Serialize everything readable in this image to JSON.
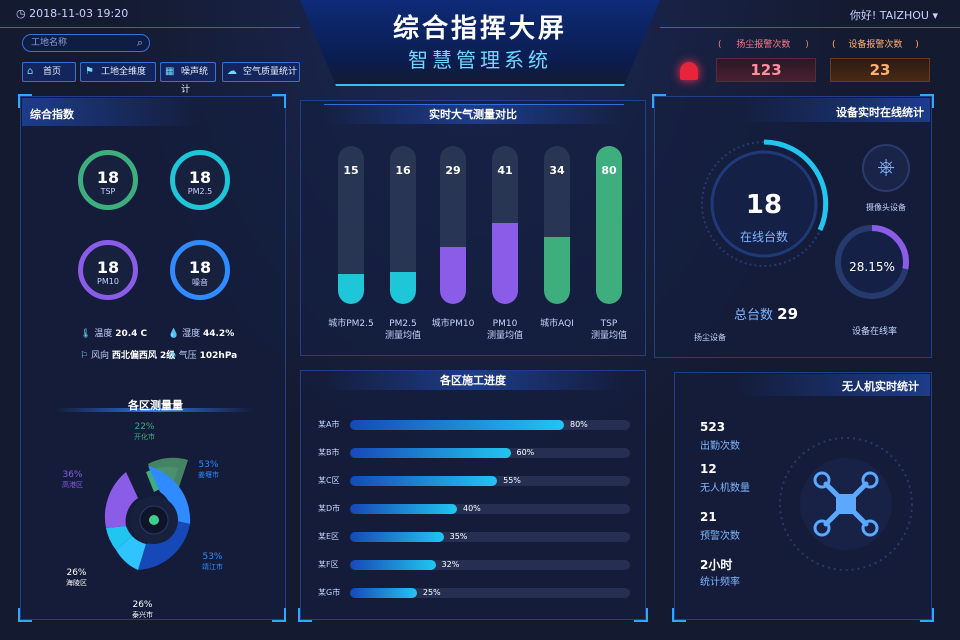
{
  "header": {
    "datetime": "2018-11-03   19:20",
    "title": "综合指挥大屏",
    "subtitle": "智慧管理系统",
    "greeting": "你好! TAIZHOU"
  },
  "search": {
    "placeholder": "工地名称"
  },
  "nav": [
    {
      "label": "首页",
      "icon": "home-icon"
    },
    {
      "label": "工地全维度",
      "icon": "site-icon"
    },
    {
      "label": "噪声统计",
      "icon": "building-icon"
    },
    {
      "label": "空气质量统计",
      "icon": "air-icon"
    }
  ],
  "alarms": {
    "dust_label": "扬尘报警次数",
    "dust_value": "123",
    "device_label": "设备报警次数",
    "device_value": "23",
    "paren_open": "(",
    "paren_close": ")"
  },
  "index_panel": {
    "title": "综合指数",
    "gauges": [
      {
        "value": "18",
        "label": "TSP",
        "color": "#3fae7e"
      },
      {
        "value": "18",
        "label": "PM2.5",
        "color": "#1fc6d8"
      },
      {
        "value": "18",
        "label": "PM10",
        "color": "#8a5ce8"
      },
      {
        "value": "18",
        "label": "噪音",
        "color": "#2f8bff"
      }
    ],
    "weather": {
      "temp_label": "温度",
      "temp_value": "20.4 C",
      "humidity_label": "湿度",
      "humidity_value": "44.2%",
      "wind_label": "风向",
      "wind_value": "西北偏西风 2级",
      "pressure_label": "气压",
      "pressure_value": "102hPa"
    }
  },
  "districts_panel": {
    "title": "各区测量量",
    "slices": [
      {
        "pct": "22%",
        "name": "开化市",
        "color": "#3fae7e"
      },
      {
        "pct": "53%",
        "name": "姜堰市",
        "color": "#2f8bff"
      },
      {
        "pct": "53%",
        "name": "靖江市",
        "color": "#1748b8"
      },
      {
        "pct": "26%",
        "name": "泰兴市",
        "color": "#2fc3ff"
      },
      {
        "pct": "26%",
        "name": "海陵区",
        "color": "#21c6f0"
      },
      {
        "pct": "36%",
        "name": "高港区",
        "color": "#8a5ce8"
      }
    ]
  },
  "air_panel": {
    "title": "实时大气测量对比"
  },
  "chart_data": {
    "type": "bar",
    "categories": [
      "城市PM2.5",
      "PM2.5\n测量均值",
      "城市PM10",
      "PM10\n测量均值",
      "城市AQI",
      "TSP\n测量均值"
    ],
    "values": [
      15,
      16,
      29,
      41,
      34,
      80
    ],
    "colors": [
      "#1fc6d8",
      "#1fc6d8",
      "#8a5ce8",
      "#8a5ce8",
      "#3fae7e",
      "#3fae7e"
    ],
    "ylim": [
      0,
      100
    ]
  },
  "progress_panel": {
    "title": "各区施工进度",
    "rows": [
      {
        "label": "某A市",
        "value": 80,
        "text": "80%"
      },
      {
        "label": "某B市",
        "value": 60,
        "text": "60%"
      },
      {
        "label": "某C区",
        "value": 55,
        "text": "55%"
      },
      {
        "label": "某D市",
        "value": 40,
        "text": "40%"
      },
      {
        "label": "某E区",
        "value": 35,
        "text": "35%"
      },
      {
        "label": "某F区",
        "value": 32,
        "text": "32%"
      },
      {
        "label": "某G市",
        "value": 25,
        "text": "25%"
      }
    ]
  },
  "device_panel": {
    "title": "设备实时在线统计",
    "online_value": "18",
    "online_label": "在线台数",
    "total_label": "总台数",
    "total_value": "29",
    "dust_device": "扬尘设备",
    "camera_label": "摄像头设备",
    "rate_value": "28.15%",
    "rate": 0.2815,
    "rate_label": "设备在线率"
  },
  "drone_panel": {
    "title": "无人机实时统计",
    "stats": [
      {
        "value": "523",
        "label": "出勤次数"
      },
      {
        "value": "12",
        "label": "无人机数量"
      },
      {
        "value": "21",
        "label": "预警次数"
      },
      {
        "value": "2小时",
        "label": "统计频率"
      }
    ]
  }
}
